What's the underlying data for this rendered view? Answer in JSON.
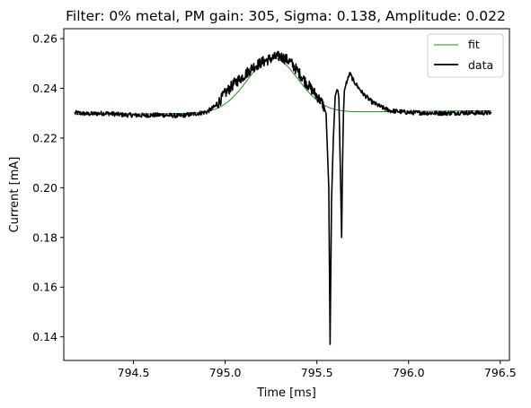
{
  "chart_data": {
    "type": "line",
    "title": "Filter: 0% metal, PM gain: 305, Sigma: 0.138, Amplitude: 0.022",
    "xlabel": "Time [ms]",
    "ylabel": "Current [mA]",
    "xlim": [
      794.12,
      796.55
    ],
    "ylim": [
      0.1305,
      0.264
    ],
    "xticks": [
      794.5,
      795.0,
      795.5,
      796.0,
      796.5
    ],
    "xtick_labels": [
      "794.5",
      "795.0",
      "795.5",
      "796.0",
      "796.5"
    ],
    "yticks": [
      0.14,
      0.16,
      0.18,
      0.2,
      0.22,
      0.24,
      0.26
    ],
    "ytick_labels": [
      "0.14",
      "0.16",
      "0.18",
      "0.20",
      "0.22",
      "0.24",
      "0.26"
    ],
    "legend_position": "top-right",
    "series": [
      {
        "name": "fit",
        "color": "#228b22",
        "model": "gaussian",
        "baseline_start": 0.2295,
        "baseline_end": 0.231,
        "center": 795.26,
        "sigma": 0.138,
        "amplitude": 0.022,
        "x_range": [
          794.18,
          796.45
        ]
      },
      {
        "name": "data",
        "color": "#000000",
        "x": [
          794.18,
          794.25,
          794.35,
          794.45,
          794.55,
          794.65,
          794.75,
          794.85,
          794.9,
          794.95,
          795.0,
          795.05,
          795.1,
          795.15,
          795.2,
          795.25,
          795.3,
          795.35,
          795.4,
          795.45,
          795.5,
          795.53,
          795.55,
          795.565,
          795.572,
          795.58,
          795.59,
          795.6,
          795.61,
          795.615,
          795.62,
          795.63,
          795.635,
          795.64,
          795.645,
          795.65,
          795.66,
          795.68,
          795.7,
          795.75,
          795.8,
          795.85,
          795.9,
          796.0,
          796.1,
          796.2,
          796.3,
          796.45
        ],
        "y": [
          0.2302,
          0.2297,
          0.23,
          0.2293,
          0.2291,
          0.2293,
          0.2289,
          0.2299,
          0.2305,
          0.233,
          0.238,
          0.242,
          0.245,
          0.2485,
          0.2505,
          0.252,
          0.253,
          0.251,
          0.2465,
          0.2415,
          0.237,
          0.234,
          0.23,
          0.2,
          0.137,
          0.195,
          0.22,
          0.237,
          0.2395,
          0.239,
          0.236,
          0.2,
          0.18,
          0.21,
          0.23,
          0.239,
          0.242,
          0.246,
          0.243,
          0.238,
          0.2345,
          0.2325,
          0.231,
          0.2303,
          0.2301,
          0.23,
          0.2302,
          0.2301
        ],
        "noise": 0.0009,
        "noise_peak": 0.0022
      }
    ]
  }
}
